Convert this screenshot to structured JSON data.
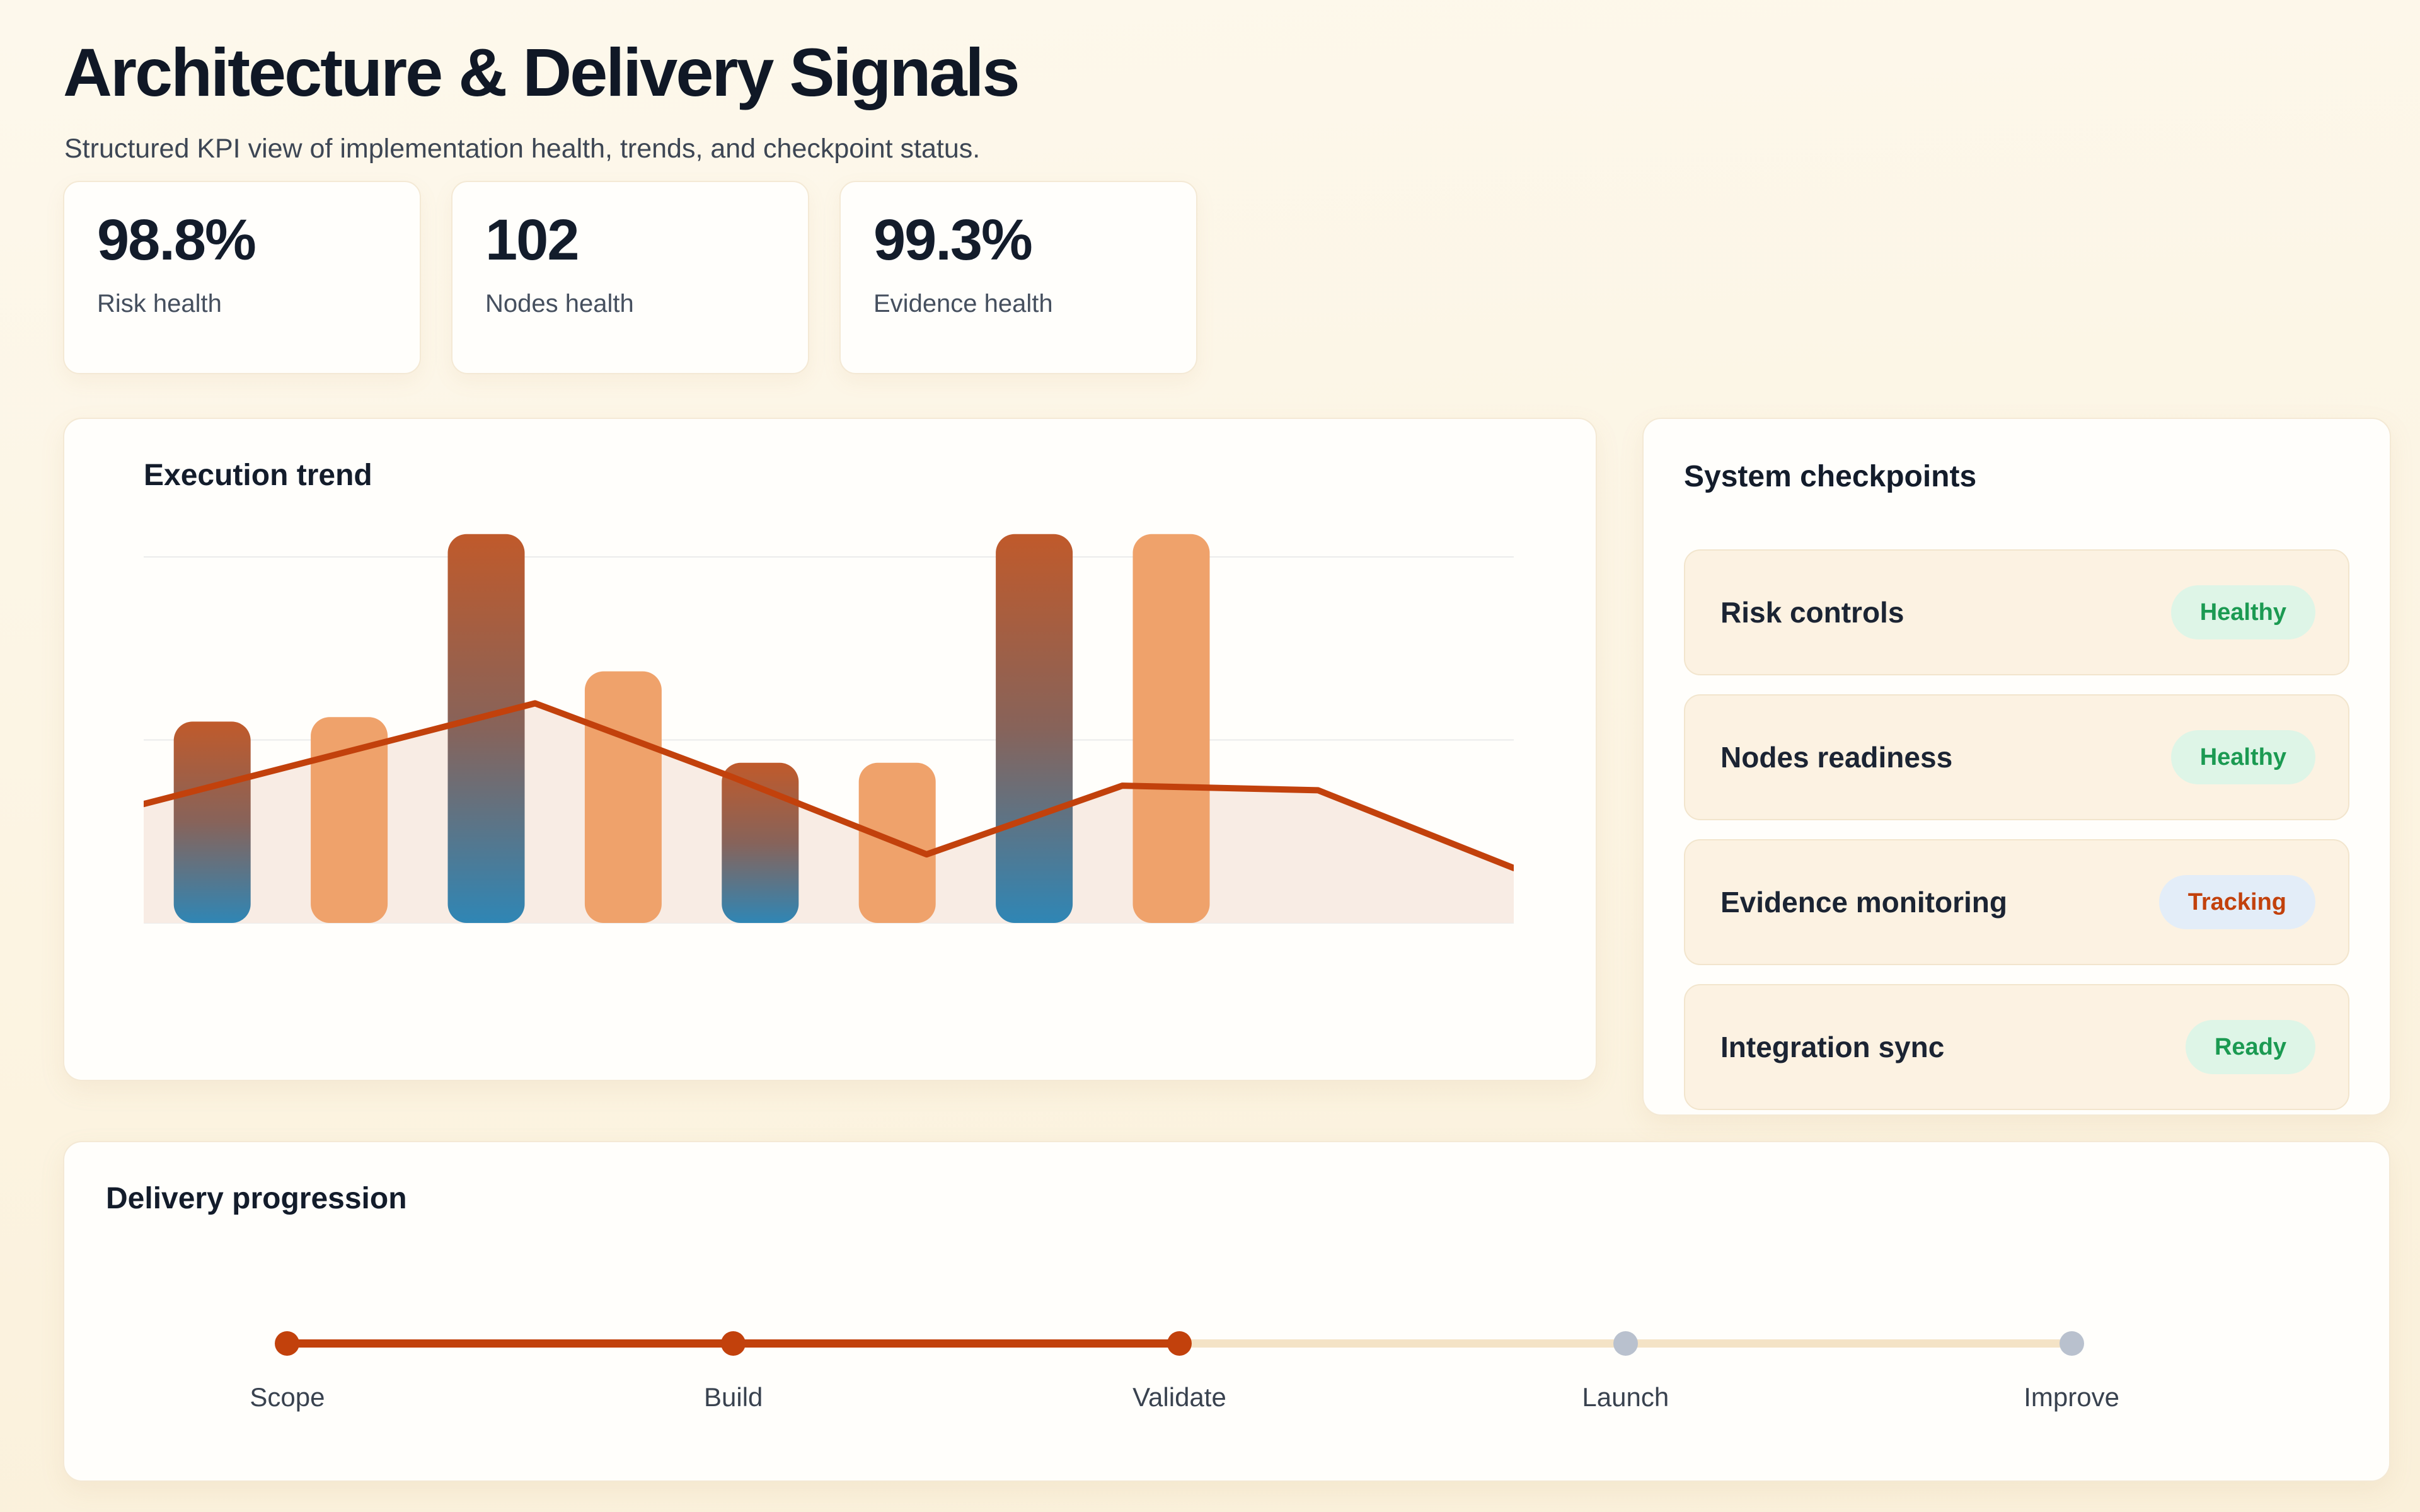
{
  "page": {
    "title": "Architecture & Delivery Signals",
    "subtitle": "Structured KPI view of implementation health, trends, and checkpoint status."
  },
  "kpis": [
    {
      "value": "98.8%",
      "label": "Risk health"
    },
    {
      "value": "102",
      "label": "Nodes health"
    },
    {
      "value": "99.3%",
      "label": "Evidence health"
    }
  ],
  "execution_trend": {
    "title": "Execution trend"
  },
  "chart_data": {
    "type": "bar+line",
    "title": "Execution trend",
    "series": [
      {
        "name": "execution-bars",
        "type": "bar",
        "values": [
          44,
          45,
          85,
          55,
          35,
          35,
          85,
          85
        ]
      },
      {
        "name": "trend-line",
        "type": "line",
        "values": [
          26,
          37,
          48,
          32,
          15,
          30,
          29,
          12
        ]
      },
      {
        "name": "trend-area-fill",
        "type": "area",
        "values": [
          26,
          37,
          48,
          32,
          15,
          30,
          29,
          12
        ]
      }
    ],
    "bar_style_pattern": [
      "gradient",
      "solid",
      "gradient",
      "solid",
      "gradient",
      "solid",
      "gradient",
      "solid"
    ],
    "ylim": [
      0,
      90
    ],
    "gridlines": [
      0,
      40,
      80
    ],
    "axis_tick_labels_visible": false,
    "legend": "none",
    "grid": "horizontal-only"
  },
  "checkpoints": {
    "title": "System checkpoints",
    "items": [
      {
        "label": "Risk controls",
        "status": "Healthy",
        "status_type": "healthy"
      },
      {
        "label": "Nodes readiness",
        "status": "Healthy",
        "status_type": "healthy"
      },
      {
        "label": "Evidence monitoring",
        "status": "Tracking",
        "status_type": "tracking"
      },
      {
        "label": "Integration sync",
        "status": "Ready",
        "status_type": "ready"
      }
    ]
  },
  "delivery": {
    "title": "Delivery progression",
    "steps": [
      {
        "label": "Scope",
        "state": "complete"
      },
      {
        "label": "Build",
        "state": "complete"
      },
      {
        "label": "Validate",
        "state": "complete"
      },
      {
        "label": "Launch",
        "state": "pending"
      },
      {
        "label": "Improve",
        "state": "pending"
      }
    ]
  },
  "colors": {
    "page_background": "#fcf4e2",
    "card_background": "#fffefb",
    "heading_text": "#101826",
    "accent_line": "#c2410c",
    "bar_gradient_top": "#c05a2b",
    "bar_gradient_mid": "#87635a",
    "bar_gradient_bottom": "#2f86b5",
    "bar_solid": "#efa26b",
    "area_fill": "#f8ece4",
    "gridline": "#ebebeb",
    "badge_green_bg": "#def5e7",
    "badge_green_text": "#1b9a52",
    "badge_blue_bg": "#e3edf8",
    "badge_blue_text": "#c2410c",
    "step_pending_dot": "#b9c1ce",
    "step_pending_track": "#f4e3c6",
    "checkpoint_row_bg": "#fcf2e2"
  }
}
